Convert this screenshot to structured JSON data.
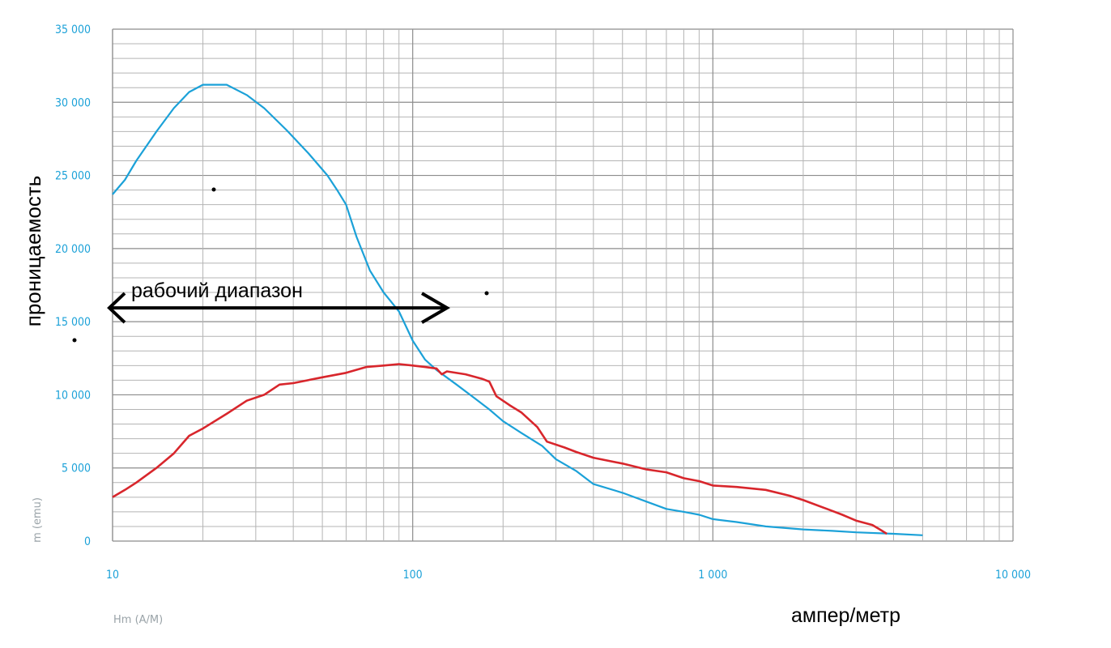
{
  "chart_data": {
    "type": "line",
    "xscale": "log",
    "xlim": [
      10,
      10000
    ],
    "ylim": [
      0,
      35000
    ],
    "grid": true,
    "ylabel": "проницаемость",
    "xlabel": "ампер/метр",
    "ylabel_small": "m (emu)",
    "xlabel_small": "Hm (A/M)",
    "y_ticks": [
      {
        "value": 0,
        "label": "0"
      },
      {
        "value": 5000,
        "label": "5 000"
      },
      {
        "value": 10000,
        "label": "10 000"
      },
      {
        "value": 15000,
        "label": "15 000"
      },
      {
        "value": 20000,
        "label": "20 000"
      },
      {
        "value": 25000,
        "label": "25 000"
      },
      {
        "value": 30000,
        "label": "30 000"
      },
      {
        "value": 35000,
        "label": "35 000"
      }
    ],
    "x_ticks": [
      {
        "value": 10,
        "label": "10"
      },
      {
        "value": 100,
        "label": "100"
      },
      {
        "value": 1000,
        "label": "1 000"
      },
      {
        "value": 10000,
        "label": "10 000"
      }
    ],
    "series": [
      {
        "color": "#1ba1d8",
        "points": [
          [
            10,
            23700
          ],
          [
            11,
            24700
          ],
          [
            12,
            26000
          ],
          [
            14,
            28000
          ],
          [
            16,
            29600
          ],
          [
            18,
            30700
          ],
          [
            20,
            31200
          ],
          [
            24,
            31200
          ],
          [
            28,
            30500
          ],
          [
            32,
            29600
          ],
          [
            38,
            28100
          ],
          [
            45,
            26500
          ],
          [
            52,
            25000
          ],
          [
            56,
            24000
          ],
          [
            60,
            23000
          ],
          [
            65,
            20800
          ],
          [
            72,
            18500
          ],
          [
            80,
            17000
          ],
          [
            90,
            15700
          ],
          [
            100,
            13700
          ],
          [
            110,
            12400
          ],
          [
            120,
            11700
          ],
          [
            140,
            10700
          ],
          [
            160,
            9800
          ],
          [
            180,
            9000
          ],
          [
            200,
            8200
          ],
          [
            230,
            7400
          ],
          [
            270,
            6500
          ],
          [
            300,
            5600
          ],
          [
            350,
            4800
          ],
          [
            400,
            3900
          ],
          [
            500,
            3300
          ],
          [
            600,
            2700
          ],
          [
            700,
            2200
          ],
          [
            800,
            2000
          ],
          [
            900,
            1800
          ],
          [
            1000,
            1500
          ],
          [
            1200,
            1300
          ],
          [
            1500,
            1000
          ],
          [
            2000,
            800
          ],
          [
            2500,
            700
          ],
          [
            3000,
            600
          ],
          [
            4000,
            500
          ],
          [
            5000,
            400
          ]
        ]
      },
      {
        "color": "#d8262c",
        "points": [
          [
            10,
            3000
          ],
          [
            11,
            3500
          ],
          [
            12,
            4000
          ],
          [
            14,
            5000
          ],
          [
            16,
            6000
          ],
          [
            18,
            7200
          ],
          [
            20,
            7700
          ],
          [
            24,
            8700
          ],
          [
            28,
            9600
          ],
          [
            32,
            10000
          ],
          [
            36,
            10700
          ],
          [
            40,
            10800
          ],
          [
            50,
            11200
          ],
          [
            60,
            11500
          ],
          [
            70,
            11900
          ],
          [
            80,
            12000
          ],
          [
            90,
            12100
          ],
          [
            100,
            12000
          ],
          [
            110,
            11900
          ],
          [
            120,
            11800
          ],
          [
            125,
            11400
          ],
          [
            130,
            11600
          ],
          [
            150,
            11400
          ],
          [
            170,
            11100
          ],
          [
            180,
            10900
          ],
          [
            190,
            9900
          ],
          [
            210,
            9300
          ],
          [
            230,
            8800
          ],
          [
            260,
            7800
          ],
          [
            280,
            6800
          ],
          [
            320,
            6400
          ],
          [
            350,
            6100
          ],
          [
            400,
            5700
          ],
          [
            500,
            5300
          ],
          [
            600,
            4900
          ],
          [
            700,
            4700
          ],
          [
            800,
            4300
          ],
          [
            900,
            4100
          ],
          [
            1000,
            3800
          ],
          [
            1200,
            3700
          ],
          [
            1500,
            3500
          ],
          [
            1800,
            3100
          ],
          [
            2000,
            2800
          ],
          [
            2400,
            2200
          ],
          [
            2700,
            1800
          ],
          [
            3000,
            1400
          ],
          [
            3400,
            1100
          ],
          [
            3600,
            800
          ],
          [
            3800,
            500
          ]
        ]
      }
    ],
    "annotations": [
      {
        "text": "рабочий диапазон",
        "arrow_from": 10,
        "arrow_to": 120,
        "y": 16000
      }
    ]
  }
}
